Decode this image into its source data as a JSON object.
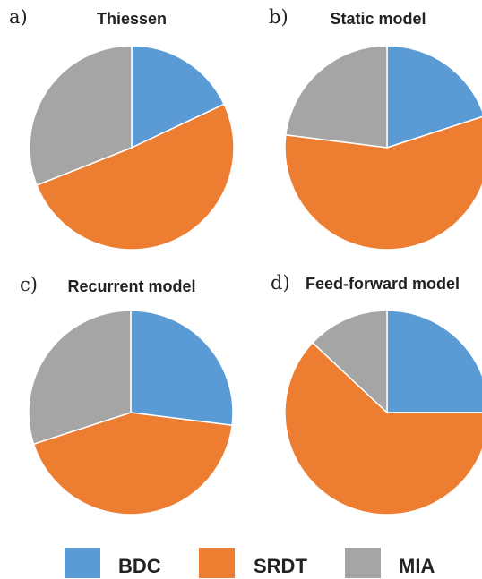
{
  "colors": {
    "BDC": "#5b9bd5",
    "SRDT": "#ed7d31",
    "MIA": "#a5a5a5"
  },
  "legend": [
    "BDC",
    "SRDT",
    "MIA"
  ],
  "chart_data": [
    {
      "type": "pie",
      "panel": "a)",
      "title": "Thiessen",
      "categories": [
        "BDC",
        "SRDT",
        "MIA"
      ],
      "values": [
        18,
        51,
        31
      ]
    },
    {
      "type": "pie",
      "panel": "b)",
      "title": "Static model",
      "categories": [
        "BDC",
        "SRDT",
        "MIA"
      ],
      "values": [
        20,
        57,
        23
      ]
    },
    {
      "type": "pie",
      "panel": "c)",
      "title": "Recurrent model",
      "categories": [
        "BDC",
        "SRDT",
        "MIA"
      ],
      "values": [
        27,
        43,
        30
      ]
    },
    {
      "type": "pie",
      "panel": "d)",
      "title": "Feed-forward model",
      "categories": [
        "BDC",
        "SRDT",
        "MIA"
      ],
      "values": [
        25,
        62,
        13
      ]
    }
  ]
}
